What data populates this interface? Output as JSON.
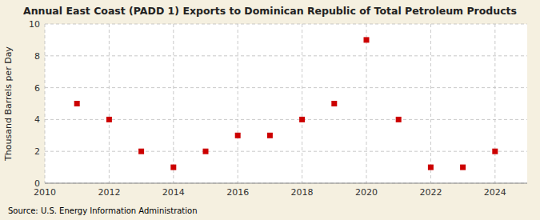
{
  "chart_data": {
    "type": "scatter",
    "title": "Annual East Coast (PADD 1) Exports to Dominican Republic of Total Petroleum Products",
    "ylabel": "Thousand Barrels per Day",
    "annotations": [
      "Source: U.S. Energy Information Administration"
    ],
    "x": [
      2011,
      2012,
      2013,
      2014,
      2015,
      2016,
      2017,
      2018,
      2019,
      2020,
      2021,
      2022,
      2023,
      2024
    ],
    "values": [
      5,
      4,
      2,
      1,
      2,
      3,
      3,
      4,
      5,
      9,
      4,
      1,
      1,
      2
    ],
    "color": "#cc0000",
    "marker": "square",
    "xlim": [
      2010,
      2025
    ],
    "ylim": [
      0,
      10
    ],
    "xticks": [
      2010,
      2012,
      2014,
      2016,
      2018,
      2020,
      2022,
      2024
    ],
    "yticks": [
      0,
      2,
      4,
      6,
      8,
      10
    ],
    "grid": true
  }
}
